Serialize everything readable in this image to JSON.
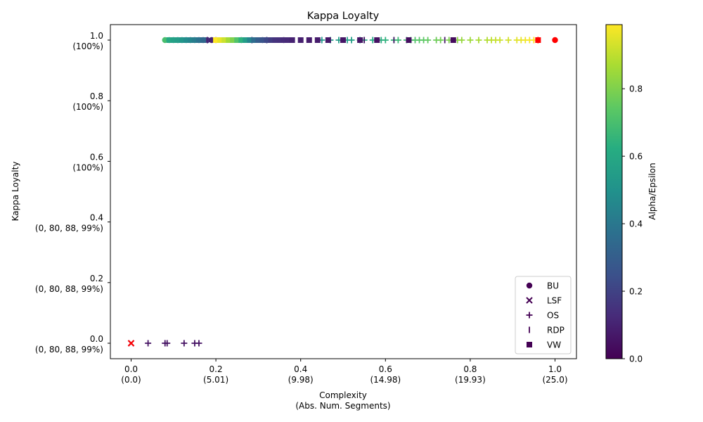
{
  "chart_data": {
    "type": "scatter",
    "title": "Kappa Loyalty",
    "xlabel_lines": [
      "Complexity",
      "(Abs. Num. Segments)"
    ],
    "ylabel": "Kappa Loyalty",
    "xlim": [
      -0.05,
      1.05
    ],
    "ylim": [
      -0.05,
      1.05
    ],
    "x_ticks": [
      {
        "value": 0.0,
        "lines": [
          "0.0",
          "(0.0)"
        ]
      },
      {
        "value": 0.2,
        "lines": [
          "0.2",
          "(5.01)"
        ]
      },
      {
        "value": 0.4,
        "lines": [
          "0.4",
          "(9.98)"
        ]
      },
      {
        "value": 0.6,
        "lines": [
          "0.6",
          "(14.98)"
        ]
      },
      {
        "value": 0.8,
        "lines": [
          "0.8",
          "(19.93)"
        ]
      },
      {
        "value": 1.0,
        "lines": [
          "1.0",
          "(25.0)"
        ]
      }
    ],
    "y_ticks": [
      {
        "value": 0.0,
        "lines": [
          "0.0",
          "(0, 80, 88, 99%)"
        ]
      },
      {
        "value": 0.2,
        "lines": [
          "0.2",
          "(0, 80, 88, 99%)"
        ]
      },
      {
        "value": 0.4,
        "lines": [
          "0.4",
          "(0, 80, 88, 99%)"
        ]
      },
      {
        "value": 0.6,
        "lines": [
          "0.6",
          "(100%)"
        ]
      },
      {
        "value": 0.8,
        "lines": [
          "0.8",
          "(100%)"
        ]
      },
      {
        "value": 1.0,
        "lines": [
          "1.0",
          "(100%)"
        ]
      }
    ],
    "colorbar": {
      "label": "Alpha/Epsilon",
      "colormap": "viridis",
      "range": [
        0.0,
        0.99
      ],
      "ticks": [
        {
          "value": 0.0,
          "label": "0.0"
        },
        {
          "value": 0.2,
          "label": "0.2"
        },
        {
          "value": 0.4,
          "label": "0.4"
        },
        {
          "value": 0.6,
          "label": "0.6"
        },
        {
          "value": 0.8,
          "label": "0.8"
        }
      ]
    },
    "legend": {
      "placement": "lower-right",
      "color": "#440154",
      "entries": [
        {
          "label": "BU",
          "marker": "circle"
        },
        {
          "label": "LSF",
          "marker": "x"
        },
        {
          "label": "OS",
          "marker": "plus"
        },
        {
          "label": "RDP",
          "marker": "vline"
        },
        {
          "label": "VW",
          "marker": "square"
        }
      ]
    },
    "highlight_color": "#ff0000",
    "series": [
      {
        "name": "BU",
        "marker": "circle",
        "points": [
          [
            0.08,
            1,
            0.7
          ],
          [
            0.09,
            1,
            0.62
          ],
          [
            0.1,
            1,
            0.58
          ],
          [
            0.11,
            1,
            0.5
          ],
          [
            0.12,
            1,
            0.45
          ],
          [
            0.13,
            1,
            0.4
          ],
          [
            0.14,
            1,
            0.35
          ],
          [
            0.15,
            1,
            0.3
          ],
          [
            0.16,
            1,
            0.25
          ],
          [
            0.17,
            1,
            0.2
          ],
          [
            0.18,
            1,
            0.15
          ],
          [
            0.19,
            1,
            0.1
          ],
          [
            0.2,
            1,
            0.05
          ],
          [
            0.26,
            1,
            0.22
          ],
          [
            0.31,
            1,
            0.18
          ],
          [
            0.36,
            1,
            0.14
          ]
        ],
        "highlight": [
          [
            1.0,
            1
          ]
        ]
      },
      {
        "name": "LSF",
        "marker": "x",
        "points": [
          [
            0.0,
            0,
            0.02
          ]
        ],
        "highlight": [
          [
            0.0,
            0
          ]
        ]
      },
      {
        "name": "OS",
        "marker": "plus",
        "points": [
          [
            0.04,
            0,
            0.05
          ],
          [
            0.08,
            0,
            0.05
          ],
          [
            0.085,
            0,
            0.05
          ],
          [
            0.125,
            0,
            0.05
          ],
          [
            0.15,
            0,
            0.05
          ],
          [
            0.16,
            0,
            0.05
          ],
          [
            0.45,
            1,
            0.52
          ],
          [
            0.47,
            1,
            0.53
          ],
          [
            0.49,
            1,
            0.54
          ],
          [
            0.51,
            1,
            0.55
          ],
          [
            0.52,
            1,
            0.56
          ],
          [
            0.54,
            1,
            0.58
          ],
          [
            0.55,
            1,
            0.6
          ],
          [
            0.57,
            1,
            0.61
          ],
          [
            0.59,
            1,
            0.63
          ],
          [
            0.6,
            1,
            0.64
          ],
          [
            0.62,
            1,
            0.65
          ],
          [
            0.63,
            1,
            0.67
          ],
          [
            0.65,
            1,
            0.68
          ],
          [
            0.66,
            1,
            0.7
          ],
          [
            0.67,
            1,
            0.72
          ],
          [
            0.68,
            1,
            0.73
          ],
          [
            0.69,
            1,
            0.74
          ],
          [
            0.7,
            1,
            0.75
          ],
          [
            0.72,
            1,
            0.77
          ],
          [
            0.73,
            1,
            0.78
          ],
          [
            0.75,
            1,
            0.8
          ],
          [
            0.77,
            1,
            0.82
          ],
          [
            0.78,
            1,
            0.84
          ],
          [
            0.8,
            1,
            0.85
          ],
          [
            0.82,
            1,
            0.87
          ],
          [
            0.84,
            1,
            0.88
          ],
          [
            0.85,
            1,
            0.9
          ],
          [
            0.86,
            1,
            0.91
          ],
          [
            0.87,
            1,
            0.92
          ],
          [
            0.89,
            1,
            0.93
          ],
          [
            0.91,
            1,
            0.95
          ],
          [
            0.92,
            1,
            0.96
          ],
          [
            0.93,
            1,
            0.97
          ],
          [
            0.94,
            1,
            0.98
          ],
          [
            0.95,
            1,
            0.99
          ]
        ],
        "highlight": []
      },
      {
        "name": "RDP",
        "marker": "vline",
        "points": [
          [
            0.18,
            1,
            0.1
          ],
          [
            0.285,
            1,
            0.15
          ],
          [
            0.32,
            1,
            0.18
          ],
          [
            0.55,
            1,
            0.05
          ],
          [
            0.62,
            1,
            0.06
          ],
          [
            0.74,
            1,
            0.07
          ]
        ],
        "highlight": [
          [
            0.96,
            1
          ]
        ]
      },
      {
        "name": "VW",
        "marker": "square",
        "points": [
          [
            0.09,
            1,
            0.6
          ],
          [
            0.1,
            1,
            0.57
          ],
          [
            0.11,
            1,
            0.55
          ],
          [
            0.12,
            1,
            0.52
          ],
          [
            0.13,
            1,
            0.48
          ],
          [
            0.14,
            1,
            0.45
          ],
          [
            0.15,
            1,
            0.42
          ],
          [
            0.16,
            1,
            0.38
          ],
          [
            0.17,
            1,
            0.34
          ],
          [
            0.2,
            1,
            0.99
          ],
          [
            0.21,
            1,
            0.96
          ],
          [
            0.22,
            1,
            0.92
          ],
          [
            0.23,
            1,
            0.86
          ],
          [
            0.24,
            1,
            0.8
          ],
          [
            0.25,
            1,
            0.72
          ],
          [
            0.26,
            1,
            0.64
          ],
          [
            0.27,
            1,
            0.55
          ],
          [
            0.28,
            1,
            0.45
          ],
          [
            0.29,
            1,
            0.36
          ],
          [
            0.3,
            1,
            0.3
          ],
          [
            0.31,
            1,
            0.26
          ],
          [
            0.32,
            1,
            0.22
          ],
          [
            0.33,
            1,
            0.18
          ],
          [
            0.34,
            1,
            0.15
          ],
          [
            0.35,
            1,
            0.14
          ],
          [
            0.36,
            1,
            0.13
          ],
          [
            0.37,
            1,
            0.12
          ],
          [
            0.38,
            1,
            0.1
          ],
          [
            0.4,
            1,
            0.09
          ],
          [
            0.42,
            1,
            0.08
          ],
          [
            0.44,
            1,
            0.08
          ],
          [
            0.465,
            1,
            0.07
          ],
          [
            0.5,
            1,
            0.06
          ],
          [
            0.54,
            1,
            0.06
          ],
          [
            0.58,
            1,
            0.05
          ],
          [
            0.655,
            1,
            0.04
          ],
          [
            0.76,
            1,
            0.03
          ]
        ],
        "highlight": [
          [
            0.96,
            1
          ]
        ]
      }
    ]
  }
}
